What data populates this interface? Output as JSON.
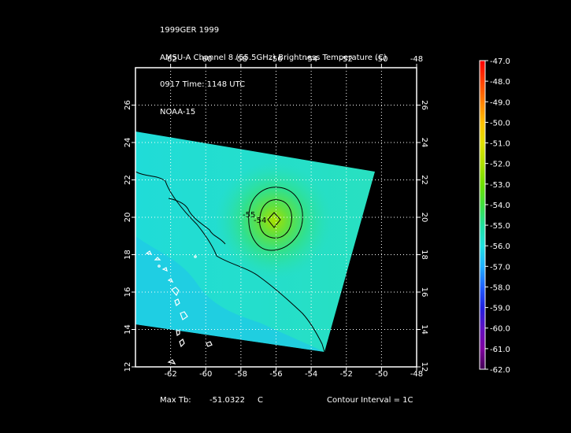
{
  "header": {
    "line1": "1999GER 1999",
    "line2": "AMSU-A Channel 8 (55.5GHz) Brightness Temperature (C)",
    "line3": "0917 Time: 1148 UTC",
    "line4": "NOAA-15"
  },
  "map": {
    "lon_ticks": [
      -62,
      -60,
      -58,
      -56,
      -54,
      -52,
      -50,
      -48
    ],
    "lat_ticks": [
      12,
      14,
      16,
      18,
      20,
      22,
      24,
      26
    ],
    "lon_range": [
      -64,
      -48
    ],
    "lat_range": [
      12,
      28
    ],
    "contour_labels": [
      "-55",
      "-54"
    ]
  },
  "colorbar": {
    "labels": [
      "-47.0",
      "-48.0",
      "-49.0",
      "-50.0",
      "-51.0",
      "-52.0",
      "-53.0",
      "-54.0",
      "-55.0",
      "-56.0",
      "-57.0",
      "-58.0",
      "-59.0",
      "-60.0",
      "-61.0",
      "-62.0"
    ],
    "colors": [
      "#ff0000",
      "#ff4000",
      "#ff8000",
      "#ffc000",
      "#e0e000",
      "#b0e000",
      "#70e000",
      "#40e040",
      "#20e0a0",
      "#20e0e0",
      "#20b0ff",
      "#2060ff",
      "#2020e0",
      "#6010c0",
      "#8000a0",
      "#400050"
    ]
  },
  "footer": {
    "max_label": "Max Tb:",
    "max_value": "-51.0322",
    "max_unit": "C",
    "contour_interval": "Contour Interval = 1C"
  }
}
